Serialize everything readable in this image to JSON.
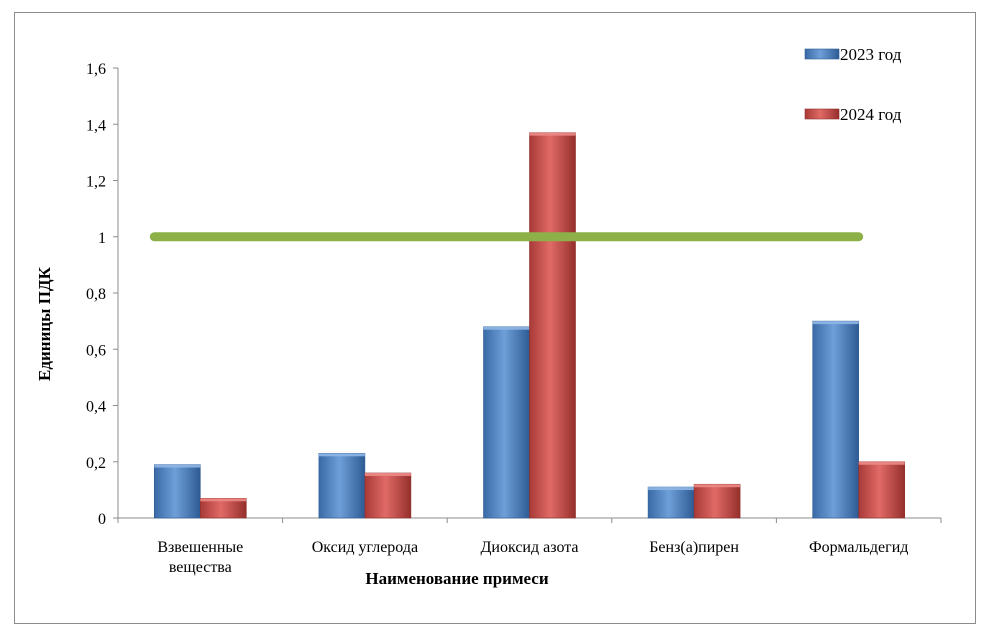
{
  "chart_data": {
    "type": "bar",
    "title": "",
    "xlabel": "Наименование примеси",
    "ylabel": "Единицы ПДК",
    "categories": [
      [
        "Взвешенные",
        "вещества"
      ],
      [
        "Оксид углерода"
      ],
      [
        "Диоксид азота"
      ],
      [
        "Бенз(а)пирен"
      ],
      [
        "Формальдегид"
      ]
    ],
    "series": [
      {
        "name": "2023 год",
        "color": "#4f81bd",
        "values": [
          0.19,
          0.23,
          0.68,
          0.11,
          0.7
        ]
      },
      {
        "name": "2024 год",
        "color": "#c0504d",
        "values": [
          0.07,
          0.16,
          1.37,
          0.12,
          0.2
        ]
      }
    ],
    "reference_line": {
      "value": 1,
      "color": "#8db048"
    },
    "ylim": [
      0,
      1.6
    ],
    "yticks": [
      "0",
      "0,2",
      "0,4",
      "0,6",
      "0,8",
      "1",
      "1,2",
      "1,4",
      "1,6"
    ],
    "grid": false,
    "legend_position": "top-right"
  }
}
